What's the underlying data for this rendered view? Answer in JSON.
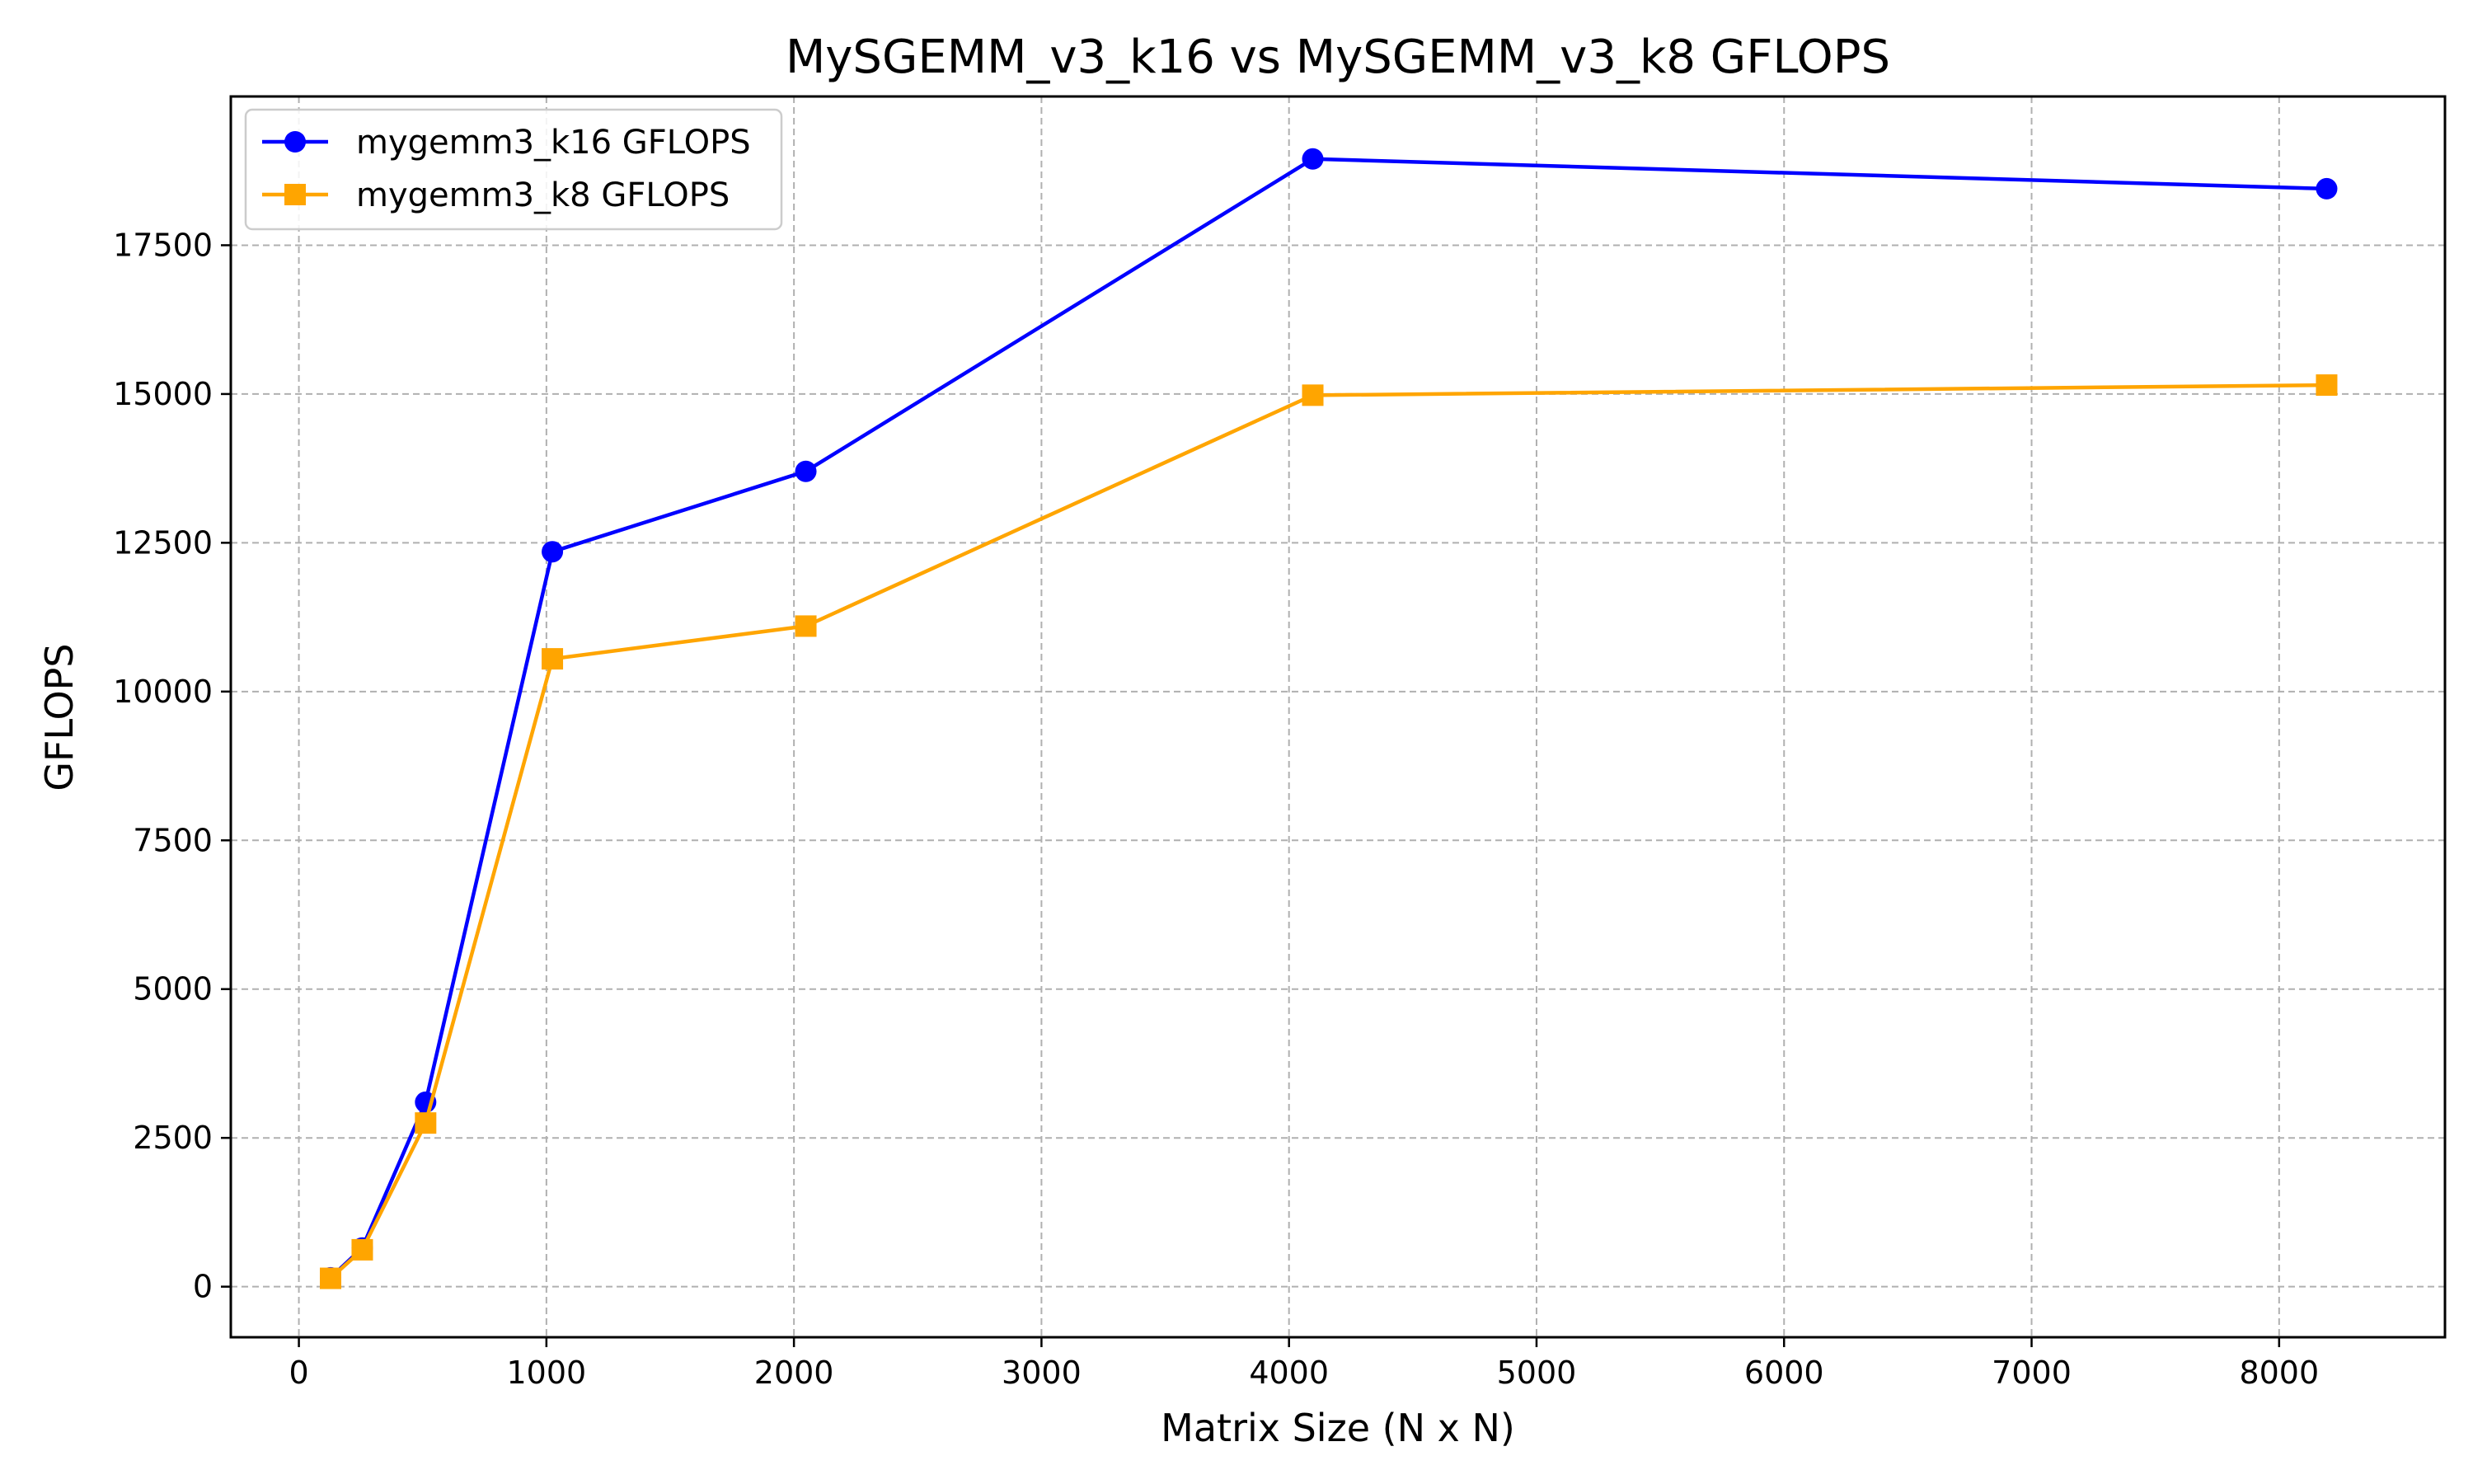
{
  "chart_data": {
    "type": "line",
    "title": "MySGEMM_v3_k16 vs MySGEMM_v3_k8 GFLOPS",
    "xlabel": "Matrix Size (N x N)",
    "ylabel": "GFLOPS",
    "xlim": [
      -275,
      8670
    ],
    "ylim": [
      -850,
      20000
    ],
    "xticks": [
      0,
      1000,
      2000,
      3000,
      4000,
      5000,
      6000,
      7000,
      8000
    ],
    "yticks": [
      0,
      2500,
      5000,
      7500,
      10000,
      12500,
      15000,
      17500
    ],
    "grid": true,
    "legend_position": "top-left",
    "x": [
      128,
      256,
      512,
      1024,
      2048,
      4096,
      8192
    ],
    "series": [
      {
        "name": "mygemm3_k16 GFLOPS",
        "color": "#0000ff",
        "marker": "circle",
        "values": [
          150,
          650,
          3100,
          12350,
          13700,
          18950,
          18450
        ]
      },
      {
        "name": "mygemm3_k8 GFLOPS",
        "color": "#ffa500",
        "marker": "square",
        "values": [
          140,
          620,
          2750,
          10550,
          11100,
          14980,
          15150
        ]
      }
    ]
  }
}
